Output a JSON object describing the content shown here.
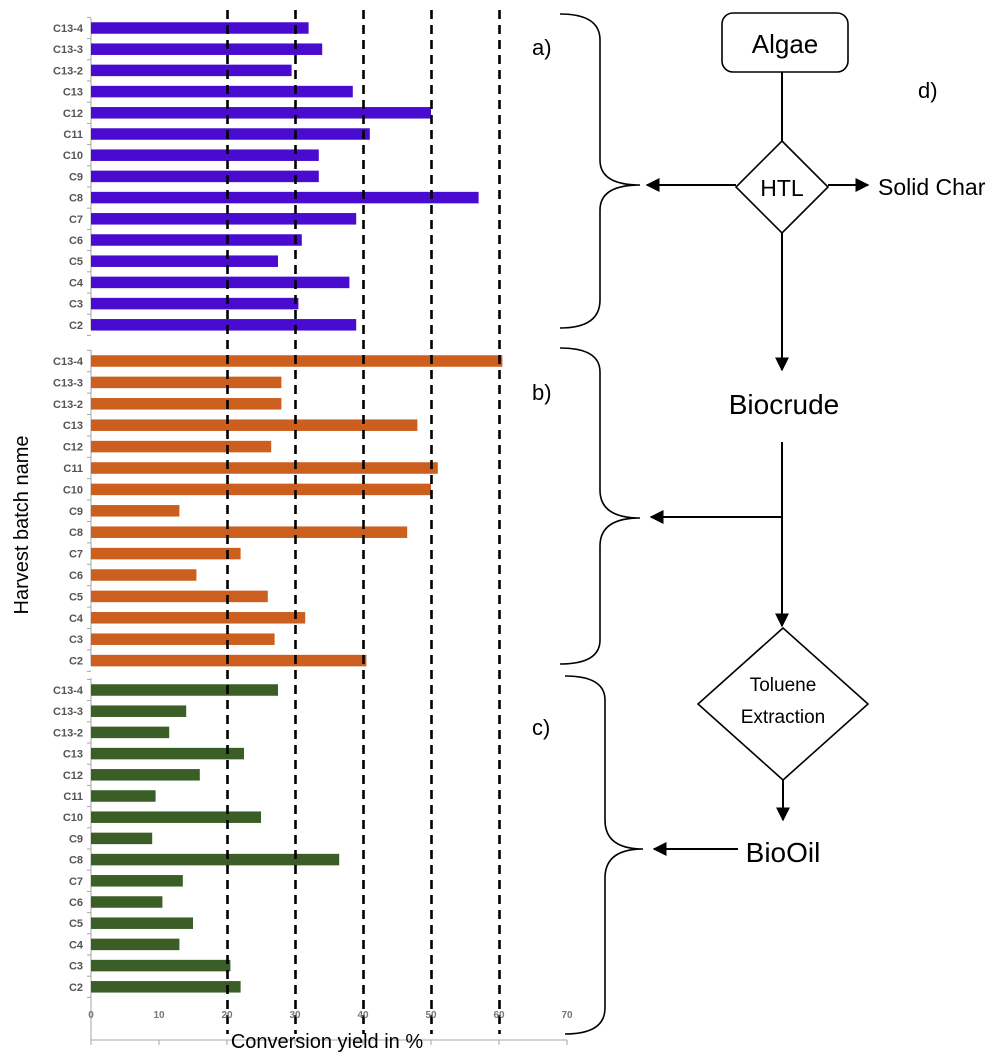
{
  "chart_data": [
    {
      "type": "bar",
      "orientation": "horizontal",
      "panel_label": "a)",
      "categories": [
        "C13-4",
        "C13-3",
        "C13-2",
        "C13",
        "C12",
        "C11",
        "C10",
        "C9",
        "C8",
        "C7",
        "C6",
        "C5",
        "C4",
        "C3",
        "C2"
      ],
      "values": [
        32,
        34,
        29.5,
        38.5,
        50,
        41,
        33.5,
        33.5,
        57,
        39,
        31,
        27.5,
        38,
        30.5,
        39
      ],
      "color": "#4a0bd0",
      "xlim": [
        0,
        70
      ],
      "reference_lines": [
        20,
        30,
        40,
        50,
        60
      ]
    },
    {
      "type": "bar",
      "orientation": "horizontal",
      "panel_label": "b)",
      "categories": [
        "C13-4",
        "C13-3",
        "C13-2",
        "C13",
        "C12",
        "C11",
        "C10",
        "C9",
        "C8",
        "C7",
        "C6",
        "C5",
        "C4",
        "C3",
        "C2"
      ],
      "values": [
        60.5,
        28,
        28,
        48,
        26.5,
        51,
        50,
        13,
        46.5,
        22,
        15.5,
        26,
        31.5,
        27,
        40.5
      ],
      "color": "#cc5f1e",
      "xlim": [
        0,
        70
      ],
      "reference_lines": [
        20,
        30,
        40,
        50,
        60
      ]
    },
    {
      "type": "bar",
      "orientation": "horizontal",
      "panel_label": "c)",
      "categories": [
        "C13-4",
        "C13-3",
        "C13-2",
        "C13",
        "C12",
        "C11",
        "C10",
        "C9",
        "C8",
        "C7",
        "C6",
        "C5",
        "C4",
        "C3",
        "C2"
      ],
      "values": [
        27.5,
        14,
        11.5,
        22.5,
        16,
        9.5,
        25,
        9,
        36.5,
        13.5,
        10.5,
        15,
        13,
        20.5,
        22
      ],
      "color": "#3a5e26",
      "xlim": [
        0,
        70
      ],
      "reference_lines": [
        20,
        30,
        40,
        50,
        60
      ]
    }
  ],
  "axes": {
    "xlabel": "Conversion yield in %",
    "ylabel": "Harvest batch name",
    "xticks": [
      "0",
      "10",
      "20",
      "30",
      "40",
      "50",
      "60",
      "70"
    ]
  },
  "flowchart": {
    "panel_label": "d)",
    "algae": "Algae",
    "htl": "HTL",
    "solid_char": "Solid Char",
    "biocrude": "Biocrude",
    "toluene_line1": "Toluene",
    "toluene_line2": "Extraction",
    "biooil": "BioOil"
  }
}
